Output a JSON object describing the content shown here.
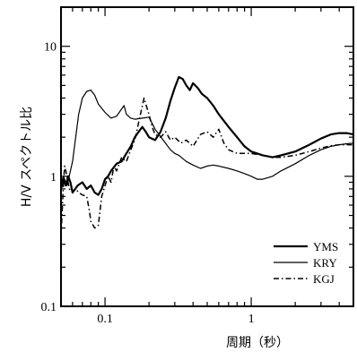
{
  "chart_data": {
    "type": "line",
    "title": "",
    "xlabel": "周期（秒）",
    "ylabel": "H/V スペクトル比",
    "xscale": "log",
    "yscale": "log",
    "xlim": [
      0.05,
      5
    ],
    "ylim": [
      0.1,
      20
    ],
    "x_ticks": [
      {
        "value": 0.1,
        "label": "0.1"
      },
      {
        "value": 1,
        "label": "1"
      }
    ],
    "y_ticks": [
      {
        "value": 0.1,
        "label": "0.1"
      },
      {
        "value": 1,
        "label": "1"
      },
      {
        "value": 10,
        "label": "10"
      }
    ],
    "grid": false,
    "legend_position": "bottom-right",
    "series": [
      {
        "name": "YMS",
        "style": "solid-thick",
        "points": [
          [
            0.05,
            0.8
          ],
          [
            0.052,
            0.95
          ],
          [
            0.054,
            0.85
          ],
          [
            0.056,
            1.0
          ],
          [
            0.058,
            0.9
          ],
          [
            0.06,
            0.75
          ],
          [
            0.065,
            0.85
          ],
          [
            0.07,
            0.9
          ],
          [
            0.075,
            0.8
          ],
          [
            0.08,
            0.85
          ],
          [
            0.085,
            0.75
          ],
          [
            0.09,
            0.72
          ],
          [
            0.095,
            0.8
          ],
          [
            0.1,
            0.95
          ],
          [
            0.105,
            1.0
          ],
          [
            0.11,
            1.1
          ],
          [
            0.12,
            1.25
          ],
          [
            0.13,
            1.3
          ],
          [
            0.14,
            1.5
          ],
          [
            0.15,
            1.7
          ],
          [
            0.16,
            2.0
          ],
          [
            0.17,
            2.2
          ],
          [
            0.18,
            2.4
          ],
          [
            0.19,
            2.2
          ],
          [
            0.2,
            2.0
          ],
          [
            0.22,
            1.9
          ],
          [
            0.24,
            2.2
          ],
          [
            0.26,
            2.8
          ],
          [
            0.28,
            3.8
          ],
          [
            0.3,
            4.8
          ],
          [
            0.32,
            5.8
          ],
          [
            0.34,
            5.6
          ],
          [
            0.36,
            5.0
          ],
          [
            0.38,
            4.6
          ],
          [
            0.4,
            5.2
          ],
          [
            0.43,
            4.8
          ],
          [
            0.46,
            4.3
          ],
          [
            0.5,
            4.0
          ],
          [
            0.55,
            3.5
          ],
          [
            0.6,
            3.0
          ],
          [
            0.7,
            2.4
          ],
          [
            0.8,
            2.0
          ],
          [
            0.9,
            1.7
          ],
          [
            1.0,
            1.55
          ],
          [
            1.2,
            1.45
          ],
          [
            1.4,
            1.4
          ],
          [
            1.6,
            1.45
          ],
          [
            2.0,
            1.55
          ],
          [
            2.5,
            1.75
          ],
          [
            3.0,
            1.95
          ],
          [
            3.5,
            2.1
          ],
          [
            4.0,
            2.15
          ],
          [
            4.5,
            2.15
          ],
          [
            5.0,
            2.1
          ]
        ]
      },
      {
        "name": "KRY",
        "style": "solid-thin",
        "points": [
          [
            0.05,
            0.9
          ],
          [
            0.052,
            1.0
          ],
          [
            0.055,
            0.85
          ],
          [
            0.058,
            1.1
          ],
          [
            0.06,
            1.3
          ],
          [
            0.063,
            2.0
          ],
          [
            0.066,
            3.0
          ],
          [
            0.07,
            4.0
          ],
          [
            0.075,
            4.5
          ],
          [
            0.08,
            4.6
          ],
          [
            0.085,
            4.2
          ],
          [
            0.09,
            3.6
          ],
          [
            0.1,
            3.1
          ],
          [
            0.11,
            2.8
          ],
          [
            0.12,
            2.9
          ],
          [
            0.13,
            3.3
          ],
          [
            0.135,
            3.5
          ],
          [
            0.14,
            3.0
          ],
          [
            0.15,
            2.8
          ],
          [
            0.16,
            2.75
          ],
          [
            0.18,
            2.8
          ],
          [
            0.2,
            2.85
          ],
          [
            0.22,
            2.3
          ],
          [
            0.25,
            1.9
          ],
          [
            0.28,
            1.6
          ],
          [
            0.3,
            1.5
          ],
          [
            0.32,
            1.45
          ],
          [
            0.36,
            1.3
          ],
          [
            0.4,
            1.22
          ],
          [
            0.45,
            1.15
          ],
          [
            0.5,
            1.2
          ],
          [
            0.55,
            1.22
          ],
          [
            0.6,
            1.2
          ],
          [
            0.7,
            1.15
          ],
          [
            0.8,
            1.1
          ],
          [
            0.9,
            1.05
          ],
          [
            1.0,
            1.0
          ],
          [
            1.1,
            0.95
          ],
          [
            1.2,
            0.95
          ],
          [
            1.4,
            1.0
          ],
          [
            1.6,
            1.1
          ],
          [
            2.0,
            1.25
          ],
          [
            2.5,
            1.45
          ],
          [
            3.0,
            1.6
          ],
          [
            3.5,
            1.7
          ],
          [
            4.0,
            1.75
          ],
          [
            4.5,
            1.78
          ],
          [
            5.0,
            1.8
          ]
        ]
      },
      {
        "name": "KGJ",
        "style": "dash-dot",
        "points": [
          [
            0.05,
            0.35
          ],
          [
            0.051,
            0.55
          ],
          [
            0.052,
            0.9
          ],
          [
            0.053,
            1.2
          ],
          [
            0.055,
            1.0
          ],
          [
            0.057,
            0.8
          ],
          [
            0.06,
            0.75
          ],
          [
            0.063,
            0.8
          ],
          [
            0.066,
            0.75
          ],
          [
            0.07,
            0.72
          ],
          [
            0.075,
            0.7
          ],
          [
            0.078,
            0.55
          ],
          [
            0.08,
            0.45
          ],
          [
            0.085,
            0.4
          ],
          [
            0.09,
            0.42
          ],
          [
            0.095,
            0.7
          ],
          [
            0.1,
            0.85
          ],
          [
            0.105,
            1.0
          ],
          [
            0.11,
            0.9
          ],
          [
            0.115,
            1.2
          ],
          [
            0.12,
            1.1
          ],
          [
            0.13,
            1.4
          ],
          [
            0.14,
            1.3
          ],
          [
            0.15,
            1.6
          ],
          [
            0.16,
            1.9
          ],
          [
            0.17,
            2.6
          ],
          [
            0.18,
            3.5
          ],
          [
            0.185,
            4.0
          ],
          [
            0.19,
            3.6
          ],
          [
            0.2,
            3.0
          ],
          [
            0.21,
            2.4
          ],
          [
            0.22,
            2.1
          ],
          [
            0.24,
            2.0
          ],
          [
            0.26,
            2.2
          ],
          [
            0.28,
            1.9
          ],
          [
            0.3,
            2.0
          ],
          [
            0.33,
            1.8
          ],
          [
            0.36,
            1.9
          ],
          [
            0.4,
            1.7
          ],
          [
            0.45,
            2.1
          ],
          [
            0.5,
            2.2
          ],
          [
            0.55,
            2.0
          ],
          [
            0.6,
            2.3
          ],
          [
            0.65,
            1.8
          ],
          [
            0.7,
            1.6
          ],
          [
            0.8,
            1.5
          ],
          [
            0.9,
            1.5
          ],
          [
            1.0,
            1.5
          ],
          [
            1.2,
            1.45
          ],
          [
            1.4,
            1.4
          ],
          [
            1.6,
            1.4
          ],
          [
            2.0,
            1.45
          ],
          [
            2.5,
            1.55
          ],
          [
            3.0,
            1.65
          ],
          [
            3.5,
            1.72
          ],
          [
            4.0,
            1.75
          ],
          [
            4.5,
            1.75
          ],
          [
            5.0,
            1.75
          ]
        ]
      }
    ]
  }
}
